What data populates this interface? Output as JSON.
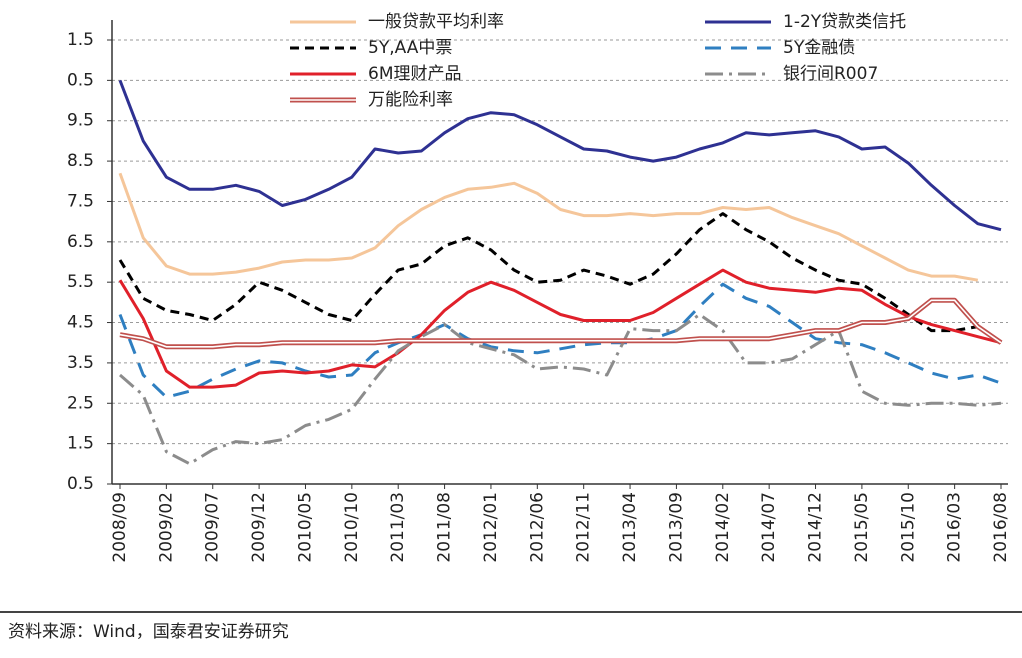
{
  "chart_data": {
    "type": "line",
    "categories": [
      "2008/09",
      null,
      "2009/02",
      null,
      "2009/07",
      null,
      "2009/12",
      null,
      "2010/05",
      null,
      "2010/10",
      null,
      "2011/03",
      null,
      "2011/08",
      null,
      "2012/01",
      null,
      "2012/06",
      null,
      "2012/11",
      null,
      "2013/04",
      null,
      "2013/09",
      null,
      "2014/02",
      null,
      "2014/07",
      null,
      "2014/12",
      null,
      "2015/05",
      null,
      "2015/10",
      null,
      "2016/03",
      null,
      "2016/08"
    ],
    "ylim": [
      0.5,
      11.5
    ],
    "yticks": [
      0.5,
      1.5,
      2.5,
      3.5,
      4.5,
      5.5,
      6.5,
      7.5,
      8.5,
      9.5,
      {
        "value": 10.5,
        "label": "0.5"
      },
      {
        "value": 11.5,
        "label": "1.5"
      }
    ],
    "grid": true,
    "legend": "top",
    "series": [
      {
        "name": "一般贷款平均利率",
        "color": "#f5c69a",
        "style": "solid",
        "values": [
          8.2,
          6.6,
          5.9,
          5.7,
          5.7,
          5.75,
          5.85,
          6.0,
          6.05,
          6.05,
          6.1,
          6.35,
          6.9,
          7.3,
          7.6,
          7.8,
          7.85,
          7.95,
          7.7,
          7.3,
          7.15,
          7.15,
          7.2,
          7.15,
          7.2,
          7.2,
          7.35,
          7.3,
          7.35,
          7.1,
          6.9,
          6.7,
          6.4,
          6.1,
          5.8,
          5.65,
          5.65,
          5.55,
          null
        ]
      },
      {
        "name": "1-2Y贷款类信托",
        "color": "#2e3192",
        "style": "solid",
        "values": [
          10.5,
          9.0,
          8.1,
          7.8,
          7.8,
          7.9,
          7.75,
          7.4,
          7.55,
          7.8,
          8.1,
          8.8,
          8.7,
          8.75,
          9.2,
          9.55,
          9.7,
          9.65,
          9.4,
          9.1,
          8.8,
          8.75,
          8.6,
          8.5,
          8.6,
          8.8,
          8.95,
          9.2,
          9.15,
          9.2,
          9.25,
          9.1,
          8.8,
          8.85,
          8.45,
          7.9,
          7.4,
          6.95,
          6.8
        ]
      },
      {
        "name": "5Y,AA中票",
        "color": "#000000",
        "style": "dashed",
        "values": [
          6.05,
          5.1,
          4.8,
          4.7,
          4.55,
          4.95,
          5.5,
          5.3,
          5.0,
          4.7,
          4.55,
          5.2,
          5.8,
          5.95,
          6.4,
          6.6,
          6.3,
          5.8,
          5.5,
          5.55,
          5.8,
          5.65,
          5.45,
          5.7,
          6.2,
          6.8,
          7.2,
          6.8,
          6.5,
          6.1,
          5.8,
          5.55,
          5.45,
          5.1,
          4.7,
          4.3,
          4.3,
          4.4,
          4.0
        ]
      },
      {
        "name": "5Y金融债",
        "color": "#2f7fc1",
        "style": "longdash",
        "values": [
          4.7,
          3.2,
          2.65,
          2.8,
          3.1,
          3.35,
          3.55,
          3.5,
          3.3,
          3.15,
          3.2,
          3.75,
          4.0,
          4.2,
          4.45,
          4.1,
          3.9,
          3.8,
          3.75,
          3.85,
          3.95,
          4.0,
          4.0,
          4.1,
          4.3,
          4.9,
          5.45,
          5.1,
          4.9,
          4.5,
          4.1,
          4.0,
          3.95,
          3.75,
          3.5,
          3.25,
          3.1,
          3.2,
          3.0
        ]
      },
      {
        "name": "6M理财产品",
        "color": "#e0202a",
        "style": "solid",
        "values": [
          5.55,
          4.6,
          3.3,
          2.9,
          2.9,
          2.95,
          3.25,
          3.3,
          3.25,
          3.3,
          3.45,
          3.4,
          3.75,
          4.2,
          4.8,
          5.25,
          5.5,
          5.3,
          5.0,
          4.7,
          4.55,
          4.55,
          4.55,
          4.75,
          5.1,
          5.45,
          5.8,
          5.5,
          5.35,
          5.3,
          5.25,
          5.35,
          5.3,
          4.95,
          4.65,
          4.45,
          4.3,
          4.15,
          4.0
        ]
      },
      {
        "name": "银行间R007",
        "color": "#8c8c8c",
        "style": "dashdot",
        "values": [
          3.2,
          2.7,
          1.3,
          1.0,
          1.35,
          1.55,
          1.5,
          1.6,
          1.95,
          2.1,
          2.35,
          3.1,
          3.8,
          4.15,
          4.45,
          4.0,
          3.85,
          3.7,
          3.35,
          3.4,
          3.35,
          3.2,
          4.35,
          4.3,
          4.3,
          4.7,
          4.3,
          3.5,
          3.5,
          3.6,
          3.95,
          4.3,
          2.8,
          2.5,
          2.45,
          2.5,
          2.5,
          2.45,
          2.5
        ]
      },
      {
        "name": "万能险利率",
        "color": "#c0504d",
        "style": "double",
        "values": [
          4.2,
          4.1,
          3.9,
          3.9,
          3.9,
          3.95,
          3.95,
          4.0,
          4.0,
          4.0,
          4.0,
          4.0,
          4.05,
          4.05,
          4.05,
          4.05,
          4.05,
          4.05,
          4.05,
          4.05,
          4.05,
          4.05,
          4.05,
          4.05,
          4.05,
          4.1,
          4.1,
          4.1,
          4.1,
          4.2,
          4.3,
          4.3,
          4.5,
          4.5,
          4.6,
          5.05,
          5.05,
          4.4,
          4.0
        ]
      }
    ],
    "note": "资料来源：Wind，国泰君安证券研究"
  }
}
